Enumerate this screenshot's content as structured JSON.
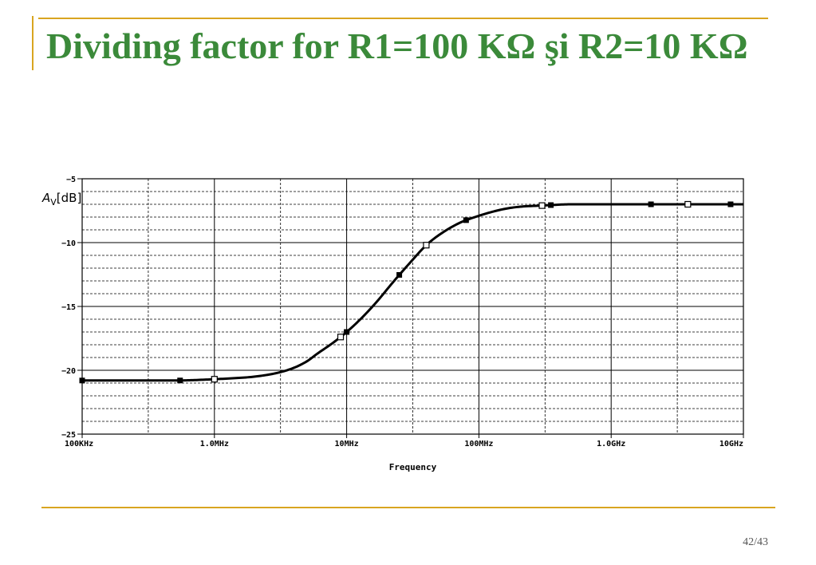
{
  "slide": {
    "title": "Dividing factor for R1=100 KΩ şi R2=10 KΩ",
    "page_number": "42/43"
  },
  "colors": {
    "title": "#3b8a3a",
    "accent": "#d9a520",
    "curve": "#000000"
  },
  "chart_data": {
    "type": "line",
    "title": "",
    "xlabel": "Frequency",
    "ylabel_main": "A",
    "ylabel_sub": "V",
    "ylabel_unit": "[dB]",
    "x_scale": "log",
    "xlim": [
      100000,
      10000000000
    ],
    "ylim": [
      -25,
      -5
    ],
    "grid": true,
    "legend": "none",
    "x_ticks": [
      {
        "value": 100000,
        "label": "100KHz"
      },
      {
        "value": 1000000,
        "label": "1.0MHz"
      },
      {
        "value": 10000000,
        "label": "10MHz"
      },
      {
        "value": 100000000,
        "label": "100MHz"
      },
      {
        "value": 1000000000,
        "label": "1.0GHz"
      },
      {
        "value": 10000000000,
        "label": "10GHz"
      }
    ],
    "y_ticks": [
      {
        "value": -5,
        "label": "−5"
      },
      {
        "value": -10,
        "label": "−10"
      },
      {
        "value": -15,
        "label": "−15"
      },
      {
        "value": -20,
        "label": "−20"
      },
      {
        "value": -25,
        "label": "−25"
      }
    ],
    "series": [
      {
        "x": [
          100000,
          200000,
          500000,
          1000000,
          1500000,
          2000000,
          3000000,
          4000000,
          5000000,
          6000000,
          8000000,
          10000000,
          13000000,
          17000000,
          22000000,
          30000000,
          40000000,
          50000000,
          70000000,
          100000000,
          150000000,
          200000000,
          300000000,
          500000000,
          1000000000,
          2000000000,
          5000000000,
          10000000000
        ],
        "y": [
          -20.8,
          -20.8,
          -20.8,
          -20.7,
          -20.6,
          -20.5,
          -20.2,
          -19.8,
          -19.3,
          -18.7,
          -17.8,
          -17.0,
          -15.9,
          -14.6,
          -13.2,
          -11.6,
          -10.2,
          -9.4,
          -8.5,
          -7.9,
          -7.4,
          -7.2,
          -7.1,
          -7.0,
          -7.0,
          -7.0,
          -7.0,
          -7.0
        ]
      }
    ],
    "markers_filled_x": [
      100000,
      550000,
      10000000,
      25000000,
      80000000,
      350000000,
      2000000000,
      8000000000
    ],
    "markers_hollow_x": [
      1000000,
      9000000,
      40000000,
      300000000,
      3800000000
    ]
  }
}
